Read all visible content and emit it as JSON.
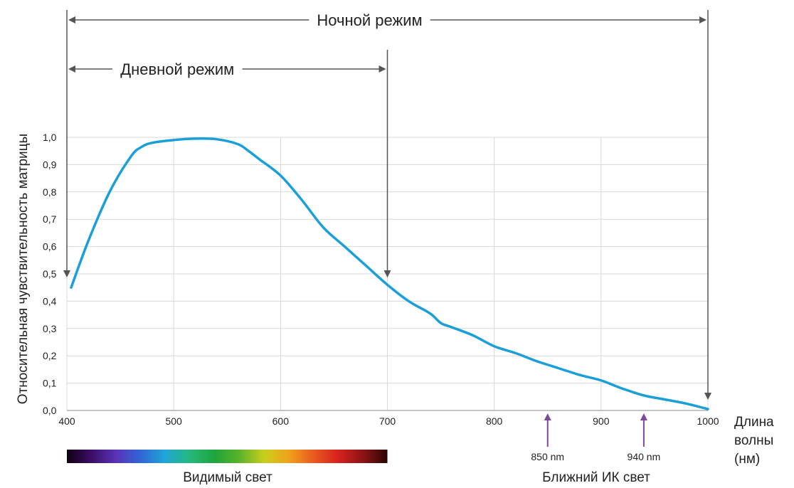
{
  "chart_data": {
    "type": "line",
    "ylabel": "Относительная чувствительность матрицы",
    "xlabel_lines": [
      "Длина",
      "волны",
      "(нм)"
    ],
    "xlim": [
      400,
      1000
    ],
    "ylim": [
      0,
      1.0
    ],
    "x_ticks": [
      400,
      500,
      600,
      700,
      800,
      900,
      1000
    ],
    "x_tick_labels": [
      "400",
      "500",
      "600",
      "700",
      "800",
      "900",
      "1000"
    ],
    "y_ticks": [
      0,
      0.1,
      0.2,
      0.3,
      0.4,
      0.5,
      0.6,
      0.7,
      0.8,
      0.9,
      1.0
    ],
    "y_tick_labels": [
      "0,0",
      "0,1",
      "0,2",
      "0,3",
      "0,4",
      "0,5",
      "0,6",
      "0,7",
      "0,8",
      "0,9",
      "1,0"
    ],
    "grid": true,
    "series": [
      {
        "color": "#1a9fd9",
        "x": [
          404,
          420,
          440,
          460,
          470,
          480,
          500,
          520,
          540,
          560,
          570,
          580,
          600,
          620,
          640,
          660,
          680,
          700,
          720,
          740,
          750,
          760,
          780,
          800,
          820,
          840,
          860,
          880,
          900,
          920,
          940,
          960,
          980,
          1000
        ],
        "y": [
          0.45,
          0.62,
          0.8,
          0.93,
          0.965,
          0.98,
          0.99,
          0.995,
          0.993,
          0.975,
          0.95,
          0.92,
          0.86,
          0.77,
          0.67,
          0.6,
          0.53,
          0.46,
          0.4,
          0.355,
          0.32,
          0.305,
          0.275,
          0.235,
          0.21,
          0.18,
          0.155,
          0.13,
          0.11,
          0.08,
          0.055,
          0.04,
          0.025,
          0.005
        ]
      }
    ],
    "modes": [
      {
        "label": "Ночной режим",
        "x_start": 400,
        "x_end": 1000
      },
      {
        "label": "Дневной режим",
        "x_start": 400,
        "x_end": 700
      }
    ],
    "markers": [
      {
        "x": 850,
        "label": "850 nm",
        "color": "#7b4a9c"
      },
      {
        "x": 940,
        "label": "940 nm",
        "color": "#7b4a9c"
      }
    ],
    "bands": [
      {
        "label": "Видимый свет",
        "x_start": 400,
        "x_end": 700
      },
      {
        "label": "Ближний ИК свет",
        "x_start": 700,
        "x_end": 1000
      }
    ],
    "spectrum_colors": [
      "#120012",
      "#3b0f66",
      "#5a33b8",
      "#2f67d6",
      "#1fa7d6",
      "#25b87a",
      "#1fa53a",
      "#5bb32a",
      "#c9cf1d",
      "#f0a21a",
      "#ea5a1f",
      "#d6221e",
      "#8e1414",
      "#2a0505"
    ]
  }
}
